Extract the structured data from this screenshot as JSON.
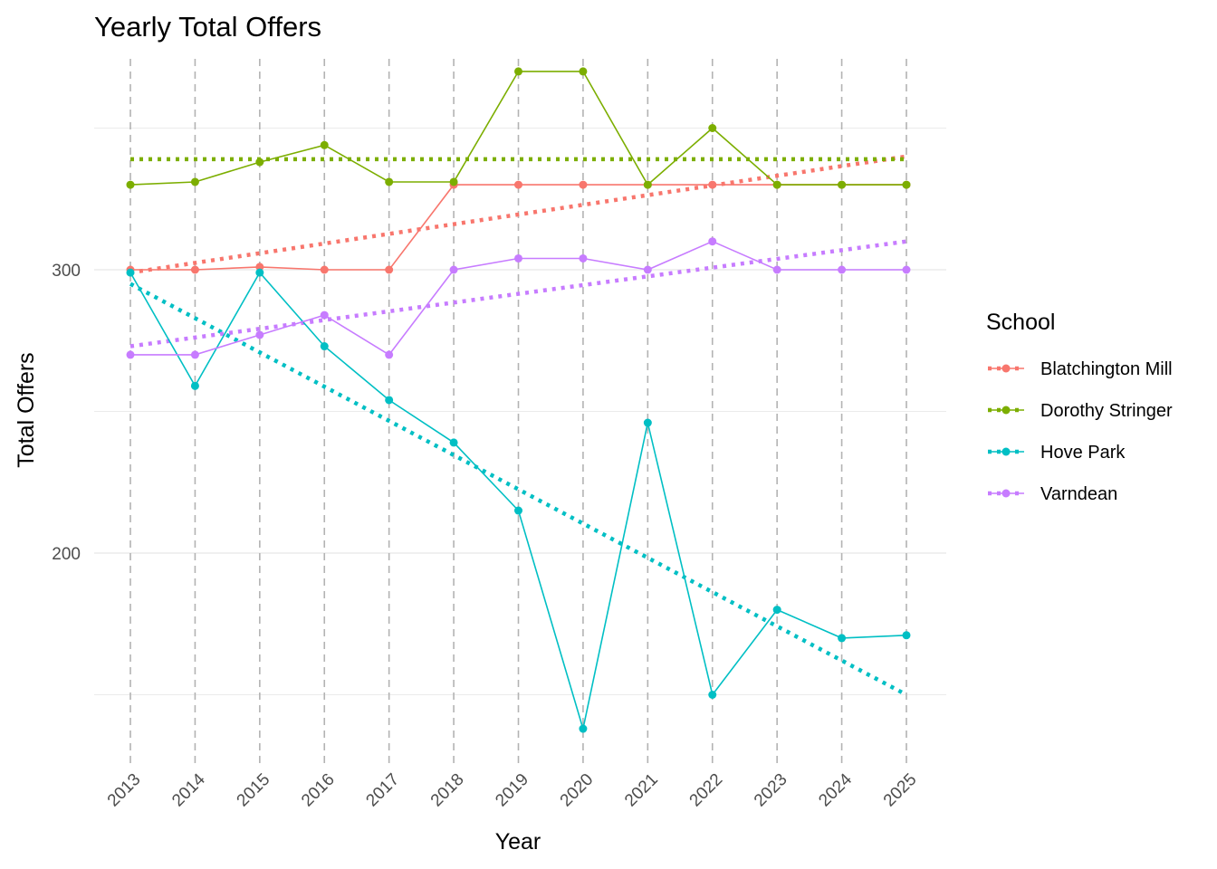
{
  "chart_data": {
    "type": "line",
    "title": "Yearly Total Offers",
    "xlabel": "Year",
    "ylabel": "Total Offers",
    "x": [
      2013,
      2014,
      2015,
      2016,
      2017,
      2018,
      2019,
      2020,
      2021,
      2022,
      2023,
      2024,
      2025
    ],
    "x_tick_labels": [
      "2013",
      "2014",
      "2015",
      "2016",
      "2017",
      "2018",
      "2019",
      "2020",
      "2021",
      "2022",
      "2023",
      "2024",
      "2025"
    ],
    "ylim": [
      125,
      375
    ],
    "y_ticks": [
      200,
      300
    ],
    "y_tick_labels": [
      "200",
      "300"
    ],
    "grid": true,
    "vertical_year_lines": "dashed",
    "trend_lines": "dotted linear fit per series",
    "legend": {
      "title": "School",
      "position": "right"
    },
    "series": [
      {
        "name": "Blatchington Mill",
        "color": "#F8766D",
        "values": [
          300,
          300,
          301,
          300,
          300,
          330,
          330,
          330,
          330,
          330,
          330,
          330,
          330
        ],
        "trend": [
          299,
          340
        ]
      },
      {
        "name": "Dorothy Stringer",
        "color": "#7CAE00",
        "values": [
          330,
          331,
          338,
          344,
          331,
          331,
          370,
          370,
          330,
          350,
          330,
          330,
          330
        ],
        "trend": [
          339,
          339
        ]
      },
      {
        "name": "Hove Park",
        "color": "#00BFC4",
        "values": [
          299,
          259,
          299,
          273,
          254,
          239,
          215,
          138,
          246,
          150,
          180,
          170,
          171
        ],
        "trend": [
          295,
          150
        ]
      },
      {
        "name": "Varndean",
        "color": "#C77CFF",
        "values": [
          270,
          270,
          277,
          284,
          270,
          300,
          304,
          304,
          300,
          310,
          300,
          300,
          300
        ],
        "trend": [
          273,
          310
        ]
      }
    ]
  }
}
